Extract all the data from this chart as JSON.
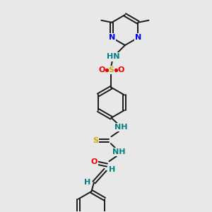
{
  "bg_color": "#e8e8e8",
  "bond_color": "#1a1a1a",
  "bond_width": 1.4,
  "atom_colors": {
    "N": "#0000ee",
    "S": "#ccaa00",
    "O": "#ee0000",
    "HN": "#008080",
    "H": "#008080",
    "C": "#1a1a1a"
  },
  "figsize": [
    3.0,
    3.0
  ],
  "dpi": 100
}
